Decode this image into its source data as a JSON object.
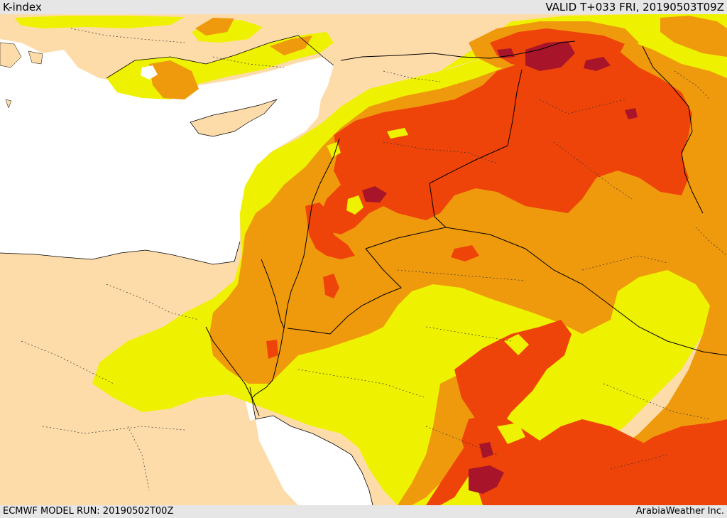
{
  "header": {
    "title": "K-index",
    "valid_time": "VALID T+033 FRI, 20190503T09Z"
  },
  "footer": {
    "model_run": "ECMWF MODEL RUN: 20190502T00Z",
    "credit": "ArabiaWeather Inc."
  },
  "colors": {
    "sea": "#ffffff",
    "land": "#fddcaa",
    "level_1_yellow": "#eef200",
    "level_2_orange": "#ef9a0c",
    "level_3_red_orange": "#ef4409",
    "level_4_dark_red": "#a8152a",
    "borders": "#000000"
  }
}
